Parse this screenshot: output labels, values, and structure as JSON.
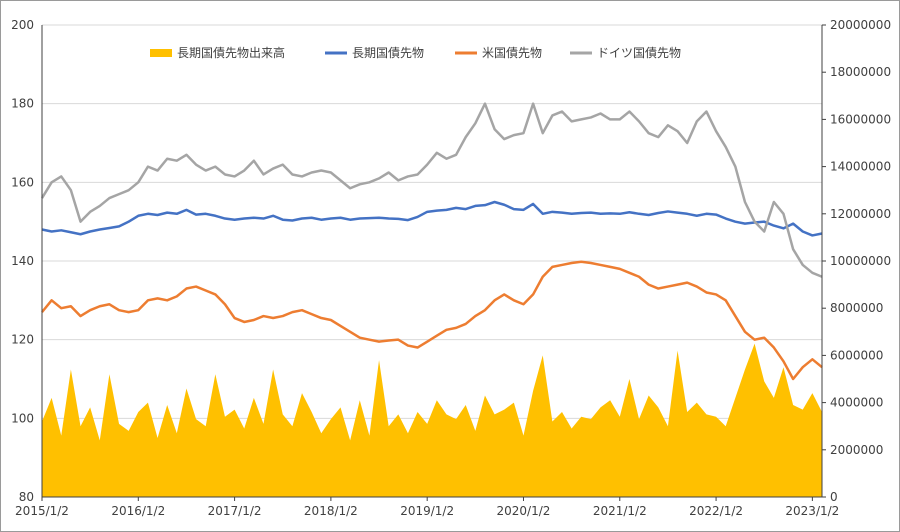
{
  "chart_data": {
    "type": "line",
    "title": "",
    "x_tick_labels": [
      "2015/1/2",
      "2016/1/2",
      "2017/1/2",
      "2018/1/2",
      "2019/1/2",
      "2020/1/2",
      "2021/1/2",
      "2022/1/2",
      "2023/1/2"
    ],
    "y_left": {
      "range": [
        80,
        200
      ],
      "ticks": [
        "80",
        "100",
        "120",
        "140",
        "160",
        "180",
        "200"
      ]
    },
    "y_right": {
      "range": [
        0,
        20000000
      ],
      "ticks": [
        "0",
        "2000000",
        "4000000",
        "6000000",
        "8000000",
        "10000000",
        "12000000",
        "14000000",
        "16000000",
        "18000000",
        "20000000"
      ]
    },
    "x_range": [
      2015.0,
      2023.1
    ],
    "grid": "horizontal",
    "legend_position": "top",
    "series": [
      {
        "name": "長期国債先物出来高",
        "kind": "area",
        "axis": "right",
        "color": "#FFC000",
        "x": [
          2015.0,
          2015.1,
          2015.2,
          2015.3,
          2015.4,
          2015.5,
          2015.6,
          2015.7,
          2015.8,
          2015.9,
          2016.0,
          2016.1,
          2016.2,
          2016.3,
          2016.4,
          2016.5,
          2016.6,
          2016.7,
          2016.8,
          2016.9,
          2017.0,
          2017.1,
          2017.2,
          2017.3,
          2017.4,
          2017.5,
          2017.6,
          2017.7,
          2017.8,
          2017.9,
          2018.0,
          2018.1,
          2018.2,
          2018.3,
          2018.4,
          2018.5,
          2018.6,
          2018.7,
          2018.8,
          2018.9,
          2019.0,
          2019.1,
          2019.2,
          2019.3,
          2019.4,
          2019.5,
          2019.6,
          2019.7,
          2019.8,
          2019.9,
          2020.0,
          2020.1,
          2020.2,
          2020.3,
          2020.4,
          2020.5,
          2020.6,
          2020.7,
          2020.8,
          2020.9,
          2021.0,
          2021.1,
          2021.2,
          2021.3,
          2021.4,
          2021.5,
          2021.6,
          2021.7,
          2021.8,
          2021.9,
          2022.0,
          2022.1,
          2022.2,
          2022.3,
          2022.4,
          2022.5,
          2022.6,
          2022.7,
          2022.8,
          2022.9,
          2023.0,
          2023.1
        ],
        "y": [
          3200000,
          4200000,
          2600000,
          5400000,
          3000000,
          3800000,
          2400000,
          5200000,
          3100000,
          2800000,
          3600000,
          4000000,
          2500000,
          3900000,
          2700000,
          4600000,
          3300000,
          3000000,
          5200000,
          3400000,
          3700000,
          2900000,
          4200000,
          3100000,
          5400000,
          3500000,
          3000000,
          4400000,
          3600000,
          2700000,
          3300000,
          3800000,
          2400000,
          4100000,
          2600000,
          5800000,
          3000000,
          3500000,
          2700000,
          3600000,
          3100000,
          4100000,
          3500000,
          3300000,
          3900000,
          2800000,
          4300000,
          3500000,
          3700000,
          4000000,
          2600000,
          4500000,
          6000000,
          3200000,
          3600000,
          2900000,
          3400000,
          3300000,
          3800000,
          4100000,
          3400000,
          5000000,
          3300000,
          4300000,
          3800000,
          3000000,
          6200000,
          3600000,
          4000000,
          3500000,
          3400000,
          3000000,
          4200000,
          5400000,
          6500000,
          4900000,
          4200000,
          5500000,
          3900000,
          3700000,
          4400000,
          3600000
        ]
      },
      {
        "name": "長期国債先物",
        "kind": "line",
        "axis": "left",
        "color": "#4472C4",
        "x": [
          2015.0,
          2015.1,
          2015.2,
          2015.3,
          2015.4,
          2015.5,
          2015.6,
          2015.7,
          2015.8,
          2015.9,
          2016.0,
          2016.1,
          2016.2,
          2016.3,
          2016.4,
          2016.5,
          2016.6,
          2016.7,
          2016.8,
          2016.9,
          2017.0,
          2017.1,
          2017.2,
          2017.3,
          2017.4,
          2017.5,
          2017.6,
          2017.7,
          2017.8,
          2017.9,
          2018.0,
          2018.1,
          2018.2,
          2018.3,
          2018.4,
          2018.5,
          2018.6,
          2018.7,
          2018.8,
          2018.9,
          2019.0,
          2019.1,
          2019.2,
          2019.3,
          2019.4,
          2019.5,
          2019.6,
          2019.7,
          2019.8,
          2019.9,
          2020.0,
          2020.1,
          2020.2,
          2020.3,
          2020.4,
          2020.5,
          2020.6,
          2020.7,
          2020.8,
          2020.9,
          2021.0,
          2021.1,
          2021.2,
          2021.3,
          2021.4,
          2021.5,
          2021.6,
          2021.7,
          2021.8,
          2021.9,
          2022.0,
          2022.1,
          2022.2,
          2022.3,
          2022.4,
          2022.5,
          2022.6,
          2022.7,
          2022.8,
          2022.9,
          2023.0,
          2023.1
        ],
        "y": [
          148.0,
          147.5,
          147.8,
          147.3,
          146.8,
          147.5,
          148.0,
          148.4,
          148.8,
          150.0,
          151.5,
          152.0,
          151.7,
          152.3,
          152.0,
          153.0,
          151.8,
          152.0,
          151.5,
          150.8,
          150.5,
          150.8,
          151.0,
          150.8,
          151.5,
          150.5,
          150.3,
          150.8,
          151.0,
          150.5,
          150.8,
          151.0,
          150.5,
          150.8,
          150.9,
          151.0,
          150.8,
          150.7,
          150.4,
          151.2,
          152.5,
          152.8,
          153.0,
          153.5,
          153.2,
          154.0,
          154.2,
          155.0,
          154.3,
          153.2,
          153.0,
          154.5,
          152.0,
          152.5,
          152.3,
          152.0,
          152.2,
          152.3,
          152.0,
          152.1,
          152.0,
          152.4,
          152.0,
          151.7,
          152.2,
          152.6,
          152.3,
          152.0,
          151.5,
          152.0,
          151.8,
          150.8,
          150.0,
          149.5,
          149.8,
          150.0,
          149.0,
          148.3,
          149.5,
          147.5,
          146.5,
          147.0
        ]
      },
      {
        "name": "米国債先物",
        "kind": "line",
        "axis": "left",
        "color": "#ED7D31",
        "x": [
          2015.0,
          2015.1,
          2015.2,
          2015.3,
          2015.4,
          2015.5,
          2015.6,
          2015.7,
          2015.8,
          2015.9,
          2016.0,
          2016.1,
          2016.2,
          2016.3,
          2016.4,
          2016.5,
          2016.6,
          2016.7,
          2016.8,
          2016.9,
          2017.0,
          2017.1,
          2017.2,
          2017.3,
          2017.4,
          2017.5,
          2017.6,
          2017.7,
          2017.8,
          2017.9,
          2018.0,
          2018.1,
          2018.2,
          2018.3,
          2018.4,
          2018.5,
          2018.6,
          2018.7,
          2018.8,
          2018.9,
          2019.0,
          2019.1,
          2019.2,
          2019.3,
          2019.4,
          2019.5,
          2019.6,
          2019.7,
          2019.8,
          2019.9,
          2020.0,
          2020.1,
          2020.2,
          2020.3,
          2020.4,
          2020.5,
          2020.6,
          2020.7,
          2020.8,
          2020.9,
          2021.0,
          2021.1,
          2021.2,
          2021.3,
          2021.4,
          2021.5,
          2021.6,
          2021.7,
          2021.8,
          2021.9,
          2022.0,
          2022.1,
          2022.2,
          2022.3,
          2022.4,
          2022.5,
          2022.6,
          2022.7,
          2022.8,
          2022.9,
          2023.0,
          2023.1
        ],
        "y": [
          127.0,
          130.0,
          128.0,
          128.5,
          126.0,
          127.5,
          128.5,
          129.0,
          127.5,
          127.0,
          127.5,
          130.0,
          130.5,
          130.0,
          131.0,
          133.0,
          133.5,
          132.5,
          131.5,
          129.0,
          125.5,
          124.5,
          125.0,
          126.0,
          125.5,
          126.0,
          127.0,
          127.5,
          126.5,
          125.5,
          125.0,
          123.5,
          122.0,
          120.5,
          120.0,
          119.5,
          119.8,
          120.0,
          118.5,
          118.0,
          119.5,
          121.0,
          122.5,
          123.0,
          124.0,
          126.0,
          127.5,
          130.0,
          131.5,
          130.0,
          129.0,
          131.5,
          136.0,
          138.5,
          139.0,
          139.5,
          139.8,
          139.5,
          139.0,
          138.5,
          138.0,
          137.0,
          136.0,
          134.0,
          133.0,
          133.5,
          134.0,
          134.5,
          133.5,
          132.0,
          131.5,
          130.0,
          126.0,
          122.0,
          120.0,
          120.5,
          118.0,
          114.5,
          110.0,
          113.0,
          115.0,
          113.0
        ]
      },
      {
        "name": "ドイツ国債先物",
        "kind": "line",
        "axis": "left",
        "color": "#A5A5A5",
        "x": [
          2015.0,
          2015.1,
          2015.2,
          2015.3,
          2015.4,
          2015.5,
          2015.6,
          2015.7,
          2015.8,
          2015.9,
          2016.0,
          2016.1,
          2016.2,
          2016.3,
          2016.4,
          2016.5,
          2016.6,
          2016.7,
          2016.8,
          2016.9,
          2017.0,
          2017.1,
          2017.2,
          2017.3,
          2017.4,
          2017.5,
          2017.6,
          2017.7,
          2017.8,
          2017.9,
          2018.0,
          2018.1,
          2018.2,
          2018.3,
          2018.4,
          2018.5,
          2018.6,
          2018.7,
          2018.8,
          2018.9,
          2019.0,
          2019.1,
          2019.2,
          2019.3,
          2019.4,
          2019.5,
          2019.6,
          2019.7,
          2019.8,
          2019.9,
          2020.0,
          2020.1,
          2020.2,
          2020.3,
          2020.4,
          2020.5,
          2020.6,
          2020.7,
          2020.8,
          2020.9,
          2021.0,
          2021.1,
          2021.2,
          2021.3,
          2021.4,
          2021.5,
          2021.6,
          2021.7,
          2021.8,
          2021.9,
          2022.0,
          2022.1,
          2022.2,
          2022.3,
          2022.4,
          2022.5,
          2022.6,
          2022.7,
          2022.8,
          2022.9,
          2023.0,
          2023.1
        ],
        "y": [
          156.0,
          160.0,
          161.5,
          158.0,
          150.0,
          152.5,
          154.0,
          156.0,
          157.0,
          158.0,
          160.0,
          164.0,
          163.0,
          166.0,
          165.5,
          167.0,
          164.5,
          163.0,
          164.0,
          162.0,
          161.5,
          163.0,
          165.5,
          162.0,
          163.5,
          164.5,
          162.0,
          161.5,
          162.5,
          163.0,
          162.5,
          160.5,
          158.5,
          159.5,
          160.0,
          161.0,
          162.5,
          160.5,
          161.5,
          162.0,
          164.5,
          167.5,
          166.0,
          167.0,
          171.5,
          175.0,
          180.0,
          173.5,
          171.0,
          172.0,
          172.5,
          180.0,
          172.5,
          177.0,
          178.0,
          175.5,
          176.0,
          176.5,
          177.5,
          176.0,
          176.0,
          178.0,
          175.5,
          172.5,
          171.5,
          174.5,
          173.0,
          170.0,
          175.5,
          178.0,
          173.0,
          169.0,
          164.0,
          155.0,
          150.0,
          147.5,
          155.0,
          152.0,
          143.0,
          139.0,
          137.0,
          136.0
        ]
      }
    ]
  }
}
